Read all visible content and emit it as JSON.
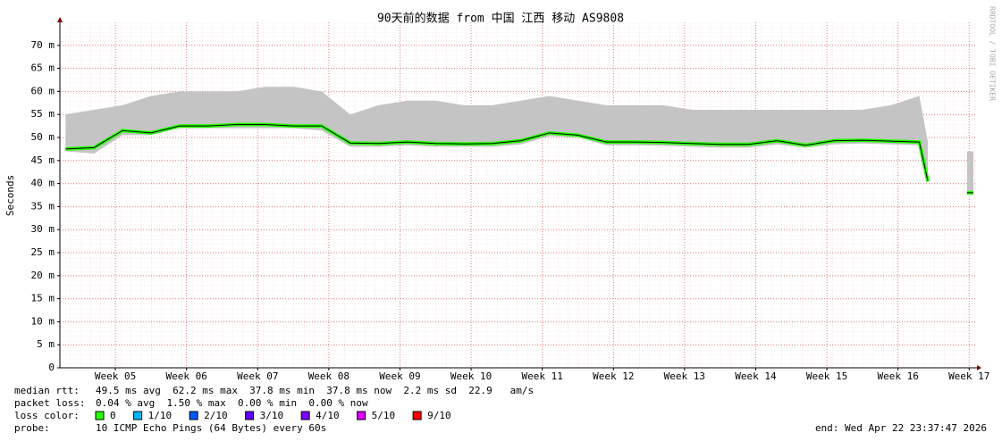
{
  "chart_data": {
    "type": "smokeping",
    "title": "90天前的数据 from 中国 江西 移动 AS9808",
    "y_label": "Seconds",
    "side_note": "RRDTOOL / TOBI OETIKER",
    "x": [
      4.3,
      4.7,
      5.1,
      5.5,
      5.9,
      6.3,
      6.7,
      7.1,
      7.5,
      7.9,
      8.3,
      8.7,
      9.1,
      9.5,
      9.9,
      10.3,
      10.7,
      11.1,
      11.5,
      11.9,
      12.3,
      12.7,
      13.1,
      13.5,
      13.9,
      14.3,
      14.7,
      15.1,
      15.5,
      15.9,
      16.3,
      16.42,
      16.7,
      16.97,
      17.06
    ],
    "median": [
      47.5,
      47.8,
      51.5,
      51,
      52.5,
      52.5,
      52.8,
      52.8,
      52.5,
      52.5,
      48.8,
      48.7,
      49,
      48.7,
      48.6,
      48.7,
      49.3,
      51,
      50.5,
      49,
      49,
      48.9,
      48.7,
      48.5,
      48.5,
      49.3,
      48.3,
      49.3,
      49.4,
      49.2,
      49,
      40.5,
      null,
      38,
      38
    ],
    "smoke_max": [
      55,
      56,
      57,
      59,
      60,
      60,
      60,
      61,
      61,
      60,
      55,
      57,
      58,
      58,
      57,
      57,
      58,
      59,
      58,
      57,
      57,
      57,
      56,
      56,
      56,
      56,
      56,
      56,
      56,
      57,
      59,
      49,
      null,
      47,
      47
    ],
    "smoke_min": [
      47,
      46.5,
      50.5,
      50.5,
      52,
      52,
      52,
      52,
      52,
      51.5,
      48,
      48,
      48.3,
      48,
      48,
      48,
      48.5,
      50.3,
      50,
      48.3,
      48.3,
      48.2,
      48,
      47.8,
      47.8,
      48.5,
      47.8,
      48.5,
      48.7,
      48.5,
      48.3,
      40,
      null,
      37.5,
      37.5
    ],
    "smoke_color": "#c4c4c4",
    "line_color": "#000000",
    "xlim": [
      4.22,
      17.11
    ],
    "ylim": [
      0,
      75
    ],
    "xticks": [
      {
        "value": 5,
        "label": "Week 05"
      },
      {
        "value": 6,
        "label": "Week 06"
      },
      {
        "value": 7,
        "label": "Week 07"
      },
      {
        "value": 8,
        "label": "Week 08"
      },
      {
        "value": 9,
        "label": "Week 09"
      },
      {
        "value": 10,
        "label": "Week 10"
      },
      {
        "value": 11,
        "label": "Week 11"
      },
      {
        "value": 12,
        "label": "Week 12"
      },
      {
        "value": 13,
        "label": "Week 13"
      },
      {
        "value": 14,
        "label": "Week 14"
      },
      {
        "value": 15,
        "label": "Week 15"
      },
      {
        "value": 16,
        "label": "Week 16"
      },
      {
        "value": 17,
        "label": "Week 17"
      }
    ],
    "yticks": [
      0,
      {
        "value": 5,
        "label": "5 m"
      },
      {
        "value": 10,
        "label": "10 m"
      },
      {
        "value": 15,
        "label": "15 m"
      },
      {
        "value": 20,
        "label": "20 m"
      },
      {
        "value": 25,
        "label": "25 m"
      },
      {
        "value": 30,
        "label": "30 m"
      },
      {
        "value": 35,
        "label": "35 m"
      },
      {
        "value": 40,
        "label": "40 m"
      },
      {
        "value": 45,
        "label": "45 m"
      },
      {
        "value": 50,
        "label": "50 m"
      },
      {
        "value": 55,
        "label": "55 m"
      },
      {
        "value": 60,
        "label": "60 m"
      },
      {
        "value": 65,
        "label": "65 m"
      },
      {
        "value": 70,
        "label": "70 m"
      }
    ],
    "grid": true,
    "stats": [
      {
        "label": "median rtt:",
        "text": "49.5 ms avg  62.2 ms max  37.8 ms min  37.8 ms now  2.2 ms sd  22.9   am/s"
      },
      {
        "label": "packet loss:",
        "text": "0.04 % avg  1.50 % max  0.00 % min  0.00 % now"
      }
    ],
    "loss_label": "loss color:",
    "loss_colors": [
      {
        "color": "#26ff00",
        "label": "0"
      },
      {
        "color": "#00b8ff",
        "label": "1/10"
      },
      {
        "color": "#0059ff",
        "label": "2/10"
      },
      {
        "color": "#5e00ff",
        "label": "3/10"
      },
      {
        "color": "#7e00ff",
        "label": "4/10"
      },
      {
        "color": "#dd00ff",
        "label": "5/10"
      },
      {
        "color": "#ff0000",
        "label": "9/10"
      }
    ],
    "probe_label": "probe:",
    "probe_text": "10 ICMP Echo Pings (64 Bytes) every 60s",
    "end_text": "end: Wed Apr 22 23:37:47 2026"
  }
}
